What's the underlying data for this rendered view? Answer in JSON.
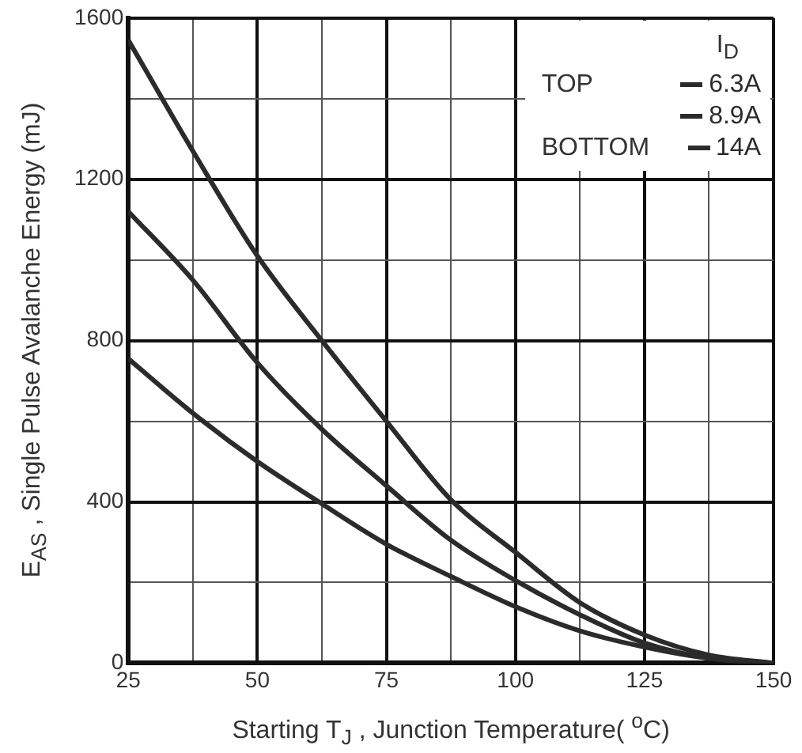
{
  "chart_data": {
    "type": "line",
    "xlabel": "Starting T$_{J}$ , Junction Temperature( $^{o}$C)",
    "ylabel": "E$_{AS}$ , Single Pulse Avalanche Energy (mJ)",
    "legend_title": "I$_{D}$",
    "annotations": [
      "TOP",
      "BOTTOM"
    ],
    "x": [
      25,
      37.5,
      50,
      62.5,
      75,
      87.5,
      100,
      112.5,
      125,
      137.5,
      150
    ],
    "series": [
      {
        "name": "6.3A",
        "color": "#2b2b2b",
        "values": [
          1545,
          1270,
          1010,
          800,
          600,
          405,
          275,
          150,
          70,
          20,
          0
        ]
      },
      {
        "name": "8.9A",
        "color": "#2b2b2b",
        "values": [
          1120,
          950,
          745,
          580,
          440,
          305,
          205,
          120,
          50,
          12,
          0
        ]
      },
      {
        "name": "14A",
        "color": "#2b2b2b",
        "values": [
          755,
          620,
          500,
          395,
          295,
          215,
          140,
          80,
          40,
          12,
          0
        ]
      }
    ],
    "xlim": [
      25,
      150
    ],
    "xticks": [
      25,
      {
        "value": 37.5,
        "label": null
      },
      50,
      {
        "value": 62.5,
        "label": null
      },
      75,
      {
        "value": 87.5,
        "label": null
      },
      100,
      {
        "value": 112.5,
        "label": null
      },
      125,
      {
        "value": 137.5,
        "label": null
      },
      150
    ],
    "ylim": [
      0,
      1600
    ],
    "yticks": [
      0,
      {
        "value": 200,
        "label": null
      },
      400,
      {
        "value": 600,
        "label": null
      },
      800,
      {
        "value": 1000,
        "label": null
      },
      1200,
      {
        "value": 1400,
        "label": null
      },
      1600
    ],
    "grid": true,
    "legend": "top right",
    "marker": "none",
    "line_style": "solid"
  }
}
